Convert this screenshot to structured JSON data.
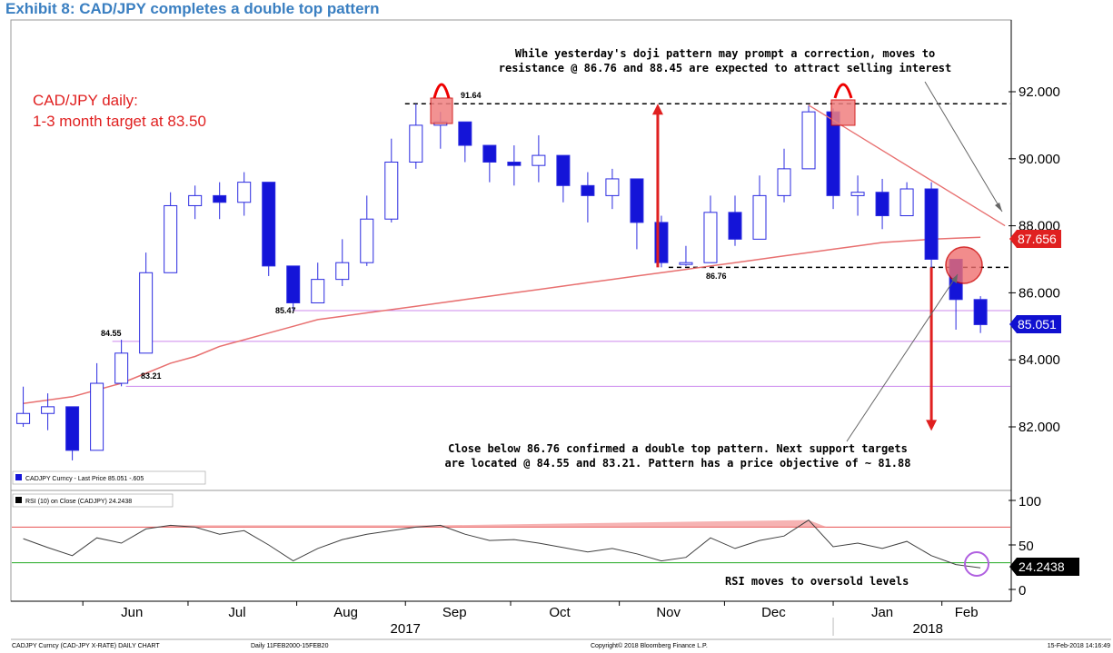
{
  "exhibit_title": "Exhibit 8: CAD/JPY completes a double top pattern",
  "colors": {
    "up_candle": "#ffffff",
    "up_candle_border": "#2a2ae0",
    "down_candle": "#1414d8",
    "moving_average": "#e87070",
    "rsi_line": "#404040",
    "rsi_overbought": "#e85050",
    "rsi_oversold": "#22aa22",
    "annotation_red": "#e02020",
    "support_line": "#cc88ee",
    "last_price_tag": "#1010d0",
    "ma_tag": "#e02020",
    "rsi_tag": "#000000"
  },
  "annotations": {
    "main_label_line1": "CAD/JPY daily:",
    "main_label_line2": "1-3 month target at 83.50",
    "top_note_line1": "While yesterday's doji pattern may prompt a correction, moves to",
    "top_note_line2": "resistance @ 86.76 and 88.45 are expected to attract selling interest",
    "bottom_note_line1": "Close below 86.76 confirmed a double top pattern. Next support targets",
    "bottom_note_line2": "are located @ 84.55 and 83.21. Pattern has a price objective of ~ 81.88",
    "rsi_note": "RSI moves to oversold levels",
    "level_91_64": "91.64",
    "level_86_76": "86.76",
    "level_85_47": "85.47",
    "level_84_55": "84.55",
    "level_83_21": "83.21"
  },
  "price_tags": {
    "ma_value": "87.656",
    "last_value": "85.051",
    "rsi_value": "24.2438"
  },
  "legend": {
    "price": "CADJPY Curncy - Last Price 85.051  -.605",
    "rsi": "RSI (10) on Close (CADJPY) 24.2438"
  },
  "footer": {
    "left": "CADJPY Curncy (CAD-JPY X-RATE) DAILY CHART",
    "middle": "Daily 11FEB2000-15FEB20",
    "center": "Copyright© 2018 Bloomberg Finance L.P.",
    "right": "15-Feb-2018 14:16:49"
  },
  "chart_data": [
    {
      "type": "candlestick",
      "title": "",
      "series": [
        {
          "name": "CADJPY Curncy - Last Price",
          "values_ref": "close"
        }
      ],
      "x_tick_labels": [
        "Jun",
        "Jul",
        "Aug",
        "Sep",
        "Oct",
        "Nov",
        "Dec",
        "Jan",
        "Feb"
      ],
      "x_year_labels": [
        "2017",
        "2018"
      ],
      "y_tick_labels": [
        "82.000",
        "84.000",
        "86.000",
        "88.000",
        "90.000",
        "92.000"
      ],
      "ylim": [
        80.5,
        93.5
      ],
      "grid": false,
      "dates": [
        "2017-05-15",
        "2017-05-22",
        "2017-05-29",
        "2017-06-05",
        "2017-06-12",
        "2017-06-19",
        "2017-06-26",
        "2017-07-03",
        "2017-07-10",
        "2017-07-17",
        "2017-07-24",
        "2017-07-31",
        "2017-08-07",
        "2017-08-14",
        "2017-08-21",
        "2017-08-28",
        "2017-09-04",
        "2017-09-11",
        "2017-09-18",
        "2017-09-25",
        "2017-10-02",
        "2017-10-09",
        "2017-10-16",
        "2017-10-23",
        "2017-10-30",
        "2017-11-06",
        "2017-11-13",
        "2017-11-20",
        "2017-11-27",
        "2017-12-04",
        "2017-12-11",
        "2017-12-18",
        "2017-12-25",
        "2018-01-01",
        "2018-01-08",
        "2018-01-15",
        "2018-01-22",
        "2018-01-29",
        "2018-02-05",
        "2018-02-12"
      ],
      "close": [
        82.4,
        82.6,
        81.3,
        83.3,
        84.2,
        86.6,
        88.6,
        88.9,
        88.7,
        89.3,
        86.8,
        85.7,
        86.4,
        86.9,
        88.2,
        89.9,
        91.0,
        91.1,
        90.4,
        89.9,
        89.8,
        90.1,
        89.2,
        88.9,
        89.4,
        88.1,
        86.9,
        86.9,
        88.4,
        87.6,
        88.9,
        89.7,
        91.4,
        88.9,
        89.0,
        88.3,
        89.1,
        87.0,
        85.8,
        85.051
      ],
      "high": [
        83.2,
        83.0,
        82.5,
        83.9,
        84.6,
        87.2,
        89.0,
        89.2,
        89.3,
        89.6,
        88.4,
        86.6,
        86.9,
        87.6,
        88.9,
        90.6,
        91.64,
        91.4,
        91.0,
        90.4,
        90.4,
        90.7,
        89.9,
        89.6,
        89.7,
        89.4,
        88.3,
        87.4,
        88.9,
        88.9,
        89.5,
        90.3,
        91.6,
        91.5,
        89.5,
        89.4,
        89.3,
        89.3,
        86.9,
        85.9
      ],
      "low": [
        82.0,
        81.9,
        81.0,
        81.8,
        83.21,
        84.2,
        86.6,
        88.2,
        88.2,
        88.3,
        86.5,
        85.47,
        85.7,
        86.2,
        86.8,
        88.1,
        89.7,
        90.3,
        89.9,
        89.3,
        89.2,
        89.3,
        88.7,
        88.1,
        88.5,
        87.3,
        86.76,
        86.8,
        86.9,
        87.4,
        87.6,
        88.7,
        89.7,
        88.5,
        88.3,
        87.9,
        88.3,
        86.5,
        84.9,
        84.8
      ],
      "moving_average": [
        82.7,
        82.8,
        82.9,
        83.1,
        83.3,
        83.6,
        83.9,
        84.1,
        84.4,
        84.6,
        84.8,
        85.0,
        85.2,
        85.3,
        85.4,
        85.5,
        85.6,
        85.7,
        85.8,
        85.9,
        86.0,
        86.1,
        86.2,
        86.3,
        86.4,
        86.5,
        86.6,
        86.7,
        86.8,
        86.9,
        87.0,
        87.1,
        87.2,
        87.3,
        87.4,
        87.5,
        87.55,
        87.6,
        87.63,
        87.656
      ],
      "levels": {
        "resistance_91_64": 91.64,
        "neckline_86_76": 86.76,
        "support_85_47": 85.47,
        "support_84_55": 84.55,
        "support_83_21": 83.21
      },
      "trendline": {
        "from": [
          "2017-12-25",
          91.6
        ],
        "to": [
          "2018-02-19",
          88.0
        ]
      },
      "arrows": [
        {
          "date": "2017-11-13",
          "from": 86.76,
          "to": 91.64,
          "direction": "up"
        },
        {
          "date": "2018-01-29",
          "from": 86.76,
          "to": 81.88,
          "direction": "down"
        }
      ]
    },
    {
      "type": "line",
      "title": "",
      "series": [
        {
          "name": "RSI (10) on Close (CADJPY)",
          "values_ref": "values"
        }
      ],
      "y_tick_labels": [
        "0",
        "50",
        "100"
      ],
      "ylim": [
        0,
        100
      ],
      "overbought": 70,
      "oversold": 30,
      "values": [
        57,
        47,
        38,
        58,
        52,
        68,
        72,
        70,
        62,
        66,
        50,
        32,
        46,
        56,
        62,
        66,
        70,
        72,
        62,
        55,
        56,
        52,
        47,
        42,
        46,
        40,
        32,
        36,
        58,
        46,
        55,
        60,
        78,
        48,
        52,
        46,
        54,
        38,
        28,
        24.2438
      ]
    }
  ]
}
